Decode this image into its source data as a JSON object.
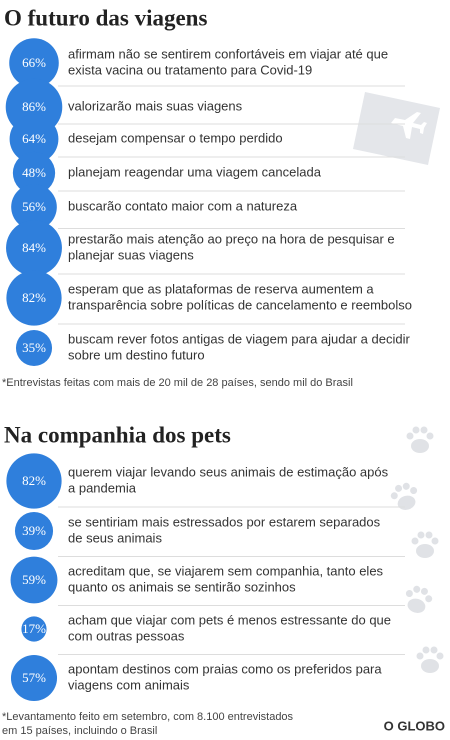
{
  "sections": [
    {
      "title": "O futuro das viagens",
      "items": [
        {
          "value": 66,
          "value_label": "66%",
          "lines": [
            "afirmam não  se sentirem confortáveis em viajar até que",
            "exista  vacina ou tratamento para  Covid-19"
          ]
        },
        {
          "value": 86,
          "value_label": "86%",
          "lines": [
            "valorizarão mais suas viagens"
          ]
        },
        {
          "value": 64,
          "value_label": "64%",
          "lines": [
            "desejam compensar o tempo perdido"
          ]
        },
        {
          "value": 48,
          "value_label": "48%",
          "lines": [
            "planejam reagendar uma viagem cancelada"
          ]
        },
        {
          "value": 56,
          "value_label": "56%",
          "lines": [
            "buscarão contato maior com a natureza"
          ]
        },
        {
          "value": 84,
          "value_label": "84%",
          "lines": [
            "prestarão mais atenção ao preço na hora de pesquisar e",
            "planejar suas viagens"
          ]
        },
        {
          "value": 82,
          "value_label": "82%",
          "lines": [
            "esperam que as plataformas de reserva aumentem a",
            "transparência sobre políticas de cancelamento e reembolso"
          ]
        },
        {
          "value": 35,
          "value_label": "35%",
          "lines": [
            "buscam rever fotos antigas de viagem para ajudar a decidir",
            "sobre um destino futuro"
          ]
        }
      ],
      "footnote": [
        "*Entrevistas feitas com mais de 20 mil de 28 países, sendo mil do Brasil"
      ]
    },
    {
      "title": "Na companhia dos pets",
      "items": [
        {
          "value": 82,
          "value_label": "82%",
          "lines": [
            "querem viajar levando seus animais de estimação após",
            "a pandemia"
          ]
        },
        {
          "value": 39,
          "value_label": "39%",
          "lines": [
            "se sentiriam mais estressados por estarem separados",
            "de seus animais"
          ]
        },
        {
          "value": 59,
          "value_label": "59%",
          "lines": [
            "acreditam que, se viajarem sem companhia, tanto eles",
            "quanto os animais se sentirão sozinhos"
          ]
        },
        {
          "value": 17,
          "value_label": "17%",
          "lines": [
            "acham que viajar com pets é menos estressante do que",
            "com outras pessoas"
          ]
        },
        {
          "value": 57,
          "value_label": "57%",
          "lines": [
            "apontam destinos com praias como os preferidos para",
            "viagens com animais"
          ]
        }
      ],
      "footnote": [
        "*Levantamento feito em setembro, com 8.100 entrevistados",
        "em 15 países, incluindo o Brasil"
      ]
    }
  ],
  "credit": "O GLOBO"
}
